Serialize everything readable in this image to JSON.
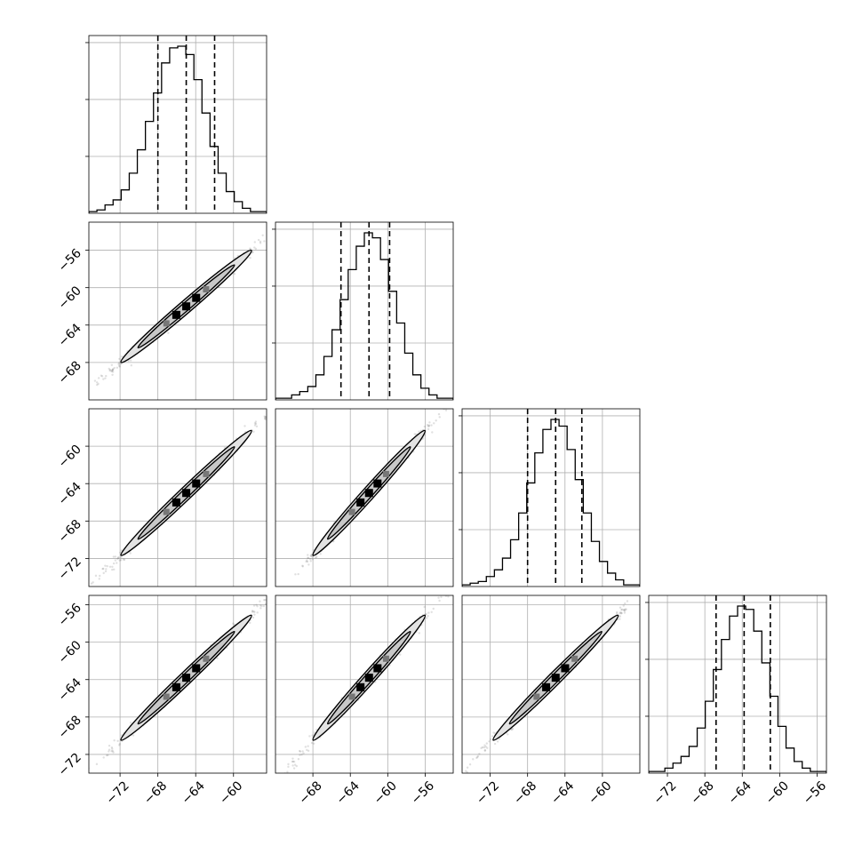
{
  "chart_data": {
    "type": "corner",
    "parameters": [
      {
        "range": [
          -75.3,
          -56.5
        ],
        "quantiles": [
          -68.0,
          -65.0,
          -62.0
        ],
        "ticks": [
          -72,
          -68,
          -64,
          -60
        ],
        "tick_labels": [
          "−72",
          "−68",
          "−64",
          "−60"
        ],
        "hist_counts": [
          0.01,
          0.02,
          0.05,
          0.08,
          0.14,
          0.24,
          0.38,
          0.55,
          0.72,
          0.9,
          0.99,
          1.0,
          0.95,
          0.8,
          0.6,
          0.4,
          0.24,
          0.13,
          0.07,
          0.03,
          0.01,
          0.01
        ]
      },
      {
        "range": [
          -72.0,
          -53.0
        ],
        "quantiles": [
          -65.0,
          -62.0,
          -59.8
        ],
        "ticks": [
          -68,
          -64,
          -60,
          -56
        ],
        "tick_labels": [
          "−68",
          "−64",
          "−60",
          "−56"
        ],
        "hist_counts": [
          0.01,
          0.01,
          0.03,
          0.05,
          0.08,
          0.15,
          0.26,
          0.42,
          0.6,
          0.78,
          0.92,
          1.0,
          0.97,
          0.84,
          0.65,
          0.46,
          0.28,
          0.15,
          0.07,
          0.03,
          0.01,
          0.01
        ]
      },
      {
        "range": [
          -75.0,
          -56.0
        ],
        "quantiles": [
          -68.0,
          -65.0,
          -62.2
        ],
        "ticks": [
          -72,
          -68,
          -64,
          -60
        ],
        "tick_labels": [
          "−72",
          "−68",
          "−64",
          "−60"
        ],
        "hist_counts": [
          0.01,
          0.02,
          0.03,
          0.06,
          0.1,
          0.17,
          0.28,
          0.44,
          0.62,
          0.8,
          0.94,
          1.0,
          0.96,
          0.82,
          0.64,
          0.44,
          0.27,
          0.15,
          0.08,
          0.04,
          0.01,
          0.01
        ]
      },
      {
        "range": [
          -74.0,
          -55.0
        ],
        "quantiles": [
          -66.8,
          -63.8,
          -61.0
        ],
        "ticks": [
          -72,
          -68,
          -64,
          -60,
          -56
        ],
        "tick_labels": [
          "−72",
          "−68",
          "−64",
          "−60",
          "−56"
        ],
        "hist_counts": [
          0.01,
          0.01,
          0.03,
          0.06,
          0.1,
          0.16,
          0.27,
          0.43,
          0.62,
          0.8,
          0.94,
          1.0,
          0.98,
          0.85,
          0.66,
          0.46,
          0.28,
          0.15,
          0.07,
          0.03,
          0.01,
          0.01
        ]
      }
    ],
    "y_tick_labels_rows": [
      [
        "−56",
        "−60",
        "−64",
        "−68"
      ],
      [
        "−60",
        "−64",
        "−68",
        "−72"
      ],
      [
        "−56",
        "−60",
        "−64",
        "−68",
        "−72"
      ]
    ],
    "correlation": 0.995,
    "grid": true
  }
}
